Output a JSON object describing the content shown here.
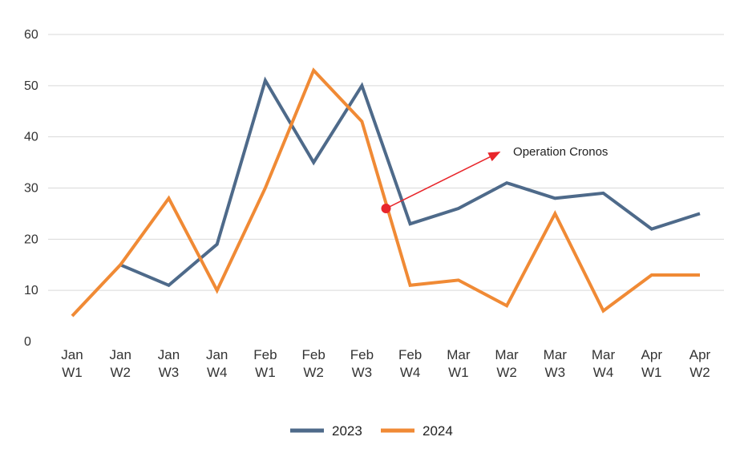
{
  "chart_data": {
    "type": "line",
    "title": "",
    "xlabel": "",
    "ylabel": "",
    "ylim": [
      0,
      60
    ],
    "yticks": [
      0,
      10,
      20,
      30,
      40,
      50,
      60
    ],
    "grid": true,
    "categories": [
      [
        "Jan",
        "W1"
      ],
      [
        "Jan",
        "W2"
      ],
      [
        "Jan",
        "W3"
      ],
      [
        "Jan",
        "W4"
      ],
      [
        "Feb",
        "W1"
      ],
      [
        "Feb",
        "W2"
      ],
      [
        "Feb",
        "W3"
      ],
      [
        "Feb",
        "W4"
      ],
      [
        "Mar",
        "W1"
      ],
      [
        "Mar",
        "W2"
      ],
      [
        "Mar",
        "W3"
      ],
      [
        "Mar",
        "W4"
      ],
      [
        "Apr",
        "W1"
      ],
      [
        "Apr",
        "W2"
      ]
    ],
    "series": [
      {
        "name": "2023",
        "color": "#4e6a8a",
        "values": [
          null,
          15,
          11,
          19,
          51,
          35,
          50,
          23,
          26,
          31,
          28,
          29,
          22,
          25
        ]
      },
      {
        "name": "2024",
        "color": "#f08a35",
        "values": [
          5,
          15,
          28,
          10,
          30,
          53,
          43,
          11,
          12,
          7,
          25,
          6,
          13,
          13
        ]
      }
    ],
    "legend_position": "bottom-center",
    "annotation": {
      "text": "Operation Cronos",
      "color": "#e8262b",
      "point": {
        "x_index": 6.5,
        "y": 26
      },
      "arrow_to": {
        "x_index": 8.85,
        "y": 37
      }
    }
  }
}
